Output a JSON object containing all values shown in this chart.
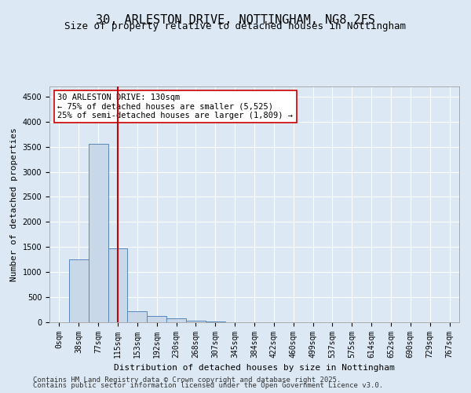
{
  "title_line1": "30, ARLESTON DRIVE, NOTTINGHAM, NG8 2FS",
  "title_line2": "Size of property relative to detached houses in Nottingham",
  "xlabel": "Distribution of detached houses by size in Nottingham",
  "ylabel": "Number of detached properties",
  "bin_labels": [
    "0sqm",
    "38sqm",
    "77sqm",
    "115sqm",
    "153sqm",
    "192sqm",
    "230sqm",
    "268sqm",
    "307sqm",
    "345sqm",
    "384sqm",
    "422sqm",
    "460sqm",
    "499sqm",
    "537sqm",
    "575sqm",
    "614sqm",
    "652sqm",
    "690sqm",
    "729sqm",
    "767sqm"
  ],
  "bar_values": [
    5,
    1250,
    3550,
    1480,
    220,
    120,
    80,
    30,
    10,
    5,
    2,
    0,
    2,
    0,
    0,
    0,
    0,
    0,
    0,
    0,
    0
  ],
  "bar_color": "#c8d8e8",
  "bar_edgecolor": "#5588bb",
  "vertical_line_x": 3,
  "vertical_line_color": "#cc0000",
  "annotation_text": "30 ARLESTON DRIVE: 130sqm\n← 75% of detached houses are smaller (5,525)\n25% of semi-detached houses are larger (1,809) →",
  "annotation_box_edgecolor": "#cc0000",
  "annotation_fontsize": 7.5,
  "ylim": [
    0,
    4700
  ],
  "yticks": [
    0,
    500,
    1000,
    1500,
    2000,
    2500,
    3000,
    3500,
    4000,
    4500
  ],
  "background_color": "#dce9f5",
  "plot_bg_color": "#dce9f5",
  "footer_line1": "Contains HM Land Registry data © Crown copyright and database right 2025.",
  "footer_line2": "Contains public sector information licensed under the Open Government Licence v3.0.",
  "footer_fontsize": 6.5,
  "title_fontsize1": 11,
  "title_fontsize2": 9,
  "grid_color": "#ffffff",
  "tick_labelsize": 7
}
